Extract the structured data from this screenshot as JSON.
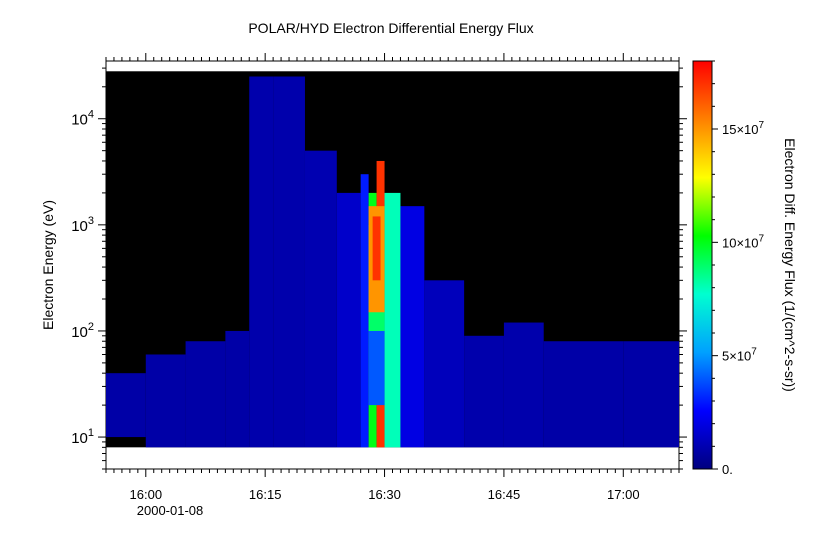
{
  "chart_data": {
    "type": "heatmap",
    "title": "POLAR/HYD  Electron Differential Energy Flux",
    "xlabel": "",
    "ylabel": "Electron Energy (eV)",
    "colorbar_label": "Electron Diff. Energy Flux (1/(cm^2-s-sr))",
    "x_time_range": [
      "15:55",
      "17:07"
    ],
    "x_tick_labels": [
      "16:00",
      "16:15",
      "16:30",
      "16:45",
      "17:00"
    ],
    "x_date_label": "2000-01-08",
    "y_scale": "log",
    "y_range": [
      5,
      35000
    ],
    "y_tick_labels": [
      {
        "base": "10",
        "exp": "1"
      },
      {
        "base": "10",
        "exp": "2"
      },
      {
        "base": "10",
        "exp": "3"
      },
      {
        "base": "10",
        "exp": "4"
      }
    ],
    "colorbar_range": [
      0,
      180000000
    ],
    "colorbar_ticks": [
      {
        "value": 0,
        "label": "0."
      },
      {
        "value": 50000000,
        "label": "5×10",
        "exp": "7"
      },
      {
        "value": 100000000,
        "label": "10×10",
        "exp": "7"
      },
      {
        "value": 150000000,
        "label": "15×10",
        "exp": "7"
      }
    ],
    "colormap": [
      "#00007f",
      "#0000ff",
      "#00a0ff",
      "#00ffd0",
      "#00ff00",
      "#ffff00",
      "#ff8000",
      "#ff0000"
    ],
    "background": "#000000",
    "columns": [
      {
        "t": "15:55",
        "emin": 10,
        "emax": 40,
        "flux": 0.8
      },
      {
        "t": "16:00",
        "emin": 8,
        "emax": 60,
        "flux": 0.8
      },
      {
        "t": "16:05",
        "emin": 8,
        "emax": 80,
        "flux": 0.8
      },
      {
        "t": "16:10",
        "emin": 8,
        "emax": 100,
        "flux": 0.8
      },
      {
        "t": "16:13",
        "emin": 8,
        "emax": 25000,
        "flux": 0.9
      },
      {
        "t": "16:16",
        "emin": 8,
        "emax": 25000,
        "flux": 0.9
      },
      {
        "t": "16:20",
        "emin": 8,
        "emax": 5000,
        "flux": 1.0
      },
      {
        "t": "16:24",
        "emin": 8,
        "emax": 2000,
        "flux": 1.5
      },
      {
        "t": "16:27",
        "emin": 8,
        "emax": 3000,
        "flux": 3.0
      },
      {
        "t": "16:28",
        "emin": 8,
        "emax": 2000,
        "flux": 10.0
      },
      {
        "t": "16:29",
        "emin": 8,
        "emax": 4000,
        "flux": 17.0
      },
      {
        "t": "16:30",
        "emin": 8,
        "emax": 2000,
        "flux": 8.0
      },
      {
        "t": "16:32",
        "emin": 8,
        "emax": 1500,
        "flux": 2.0
      },
      {
        "t": "16:35",
        "emin": 8,
        "emax": 300,
        "flux": 1.2
      },
      {
        "t": "16:40",
        "emin": 8,
        "emax": 90,
        "flux": 0.9
      },
      {
        "t": "16:45",
        "emin": 8,
        "emax": 120,
        "flux": 0.9
      },
      {
        "t": "16:50",
        "emin": 8,
        "emax": 80,
        "flux": 0.8
      },
      {
        "t": "17:00",
        "emin": 8,
        "emax": 80,
        "flux": 0.8
      },
      {
        "t": "17:07",
        "emin": 8,
        "emax": 80,
        "flux": 0.8
      }
    ],
    "hot_regions": [
      {
        "t0": "16:28",
        "t1": "16:30",
        "emin": 20,
        "emax": 100,
        "flux": 4.0
      },
      {
        "t0": "16:28",
        "t1": "16:30",
        "emin": 100,
        "emax": 1000,
        "flux": 9.0
      },
      {
        "t0": "16:28",
        "t1": "16:30",
        "emin": 150,
        "emax": 1500,
        "flux": 15.0
      },
      {
        "t0": "16:28",
        "t1": "16:30",
        "emin": 300,
        "emax": 1200,
        "flux": 17.0
      }
    ]
  }
}
